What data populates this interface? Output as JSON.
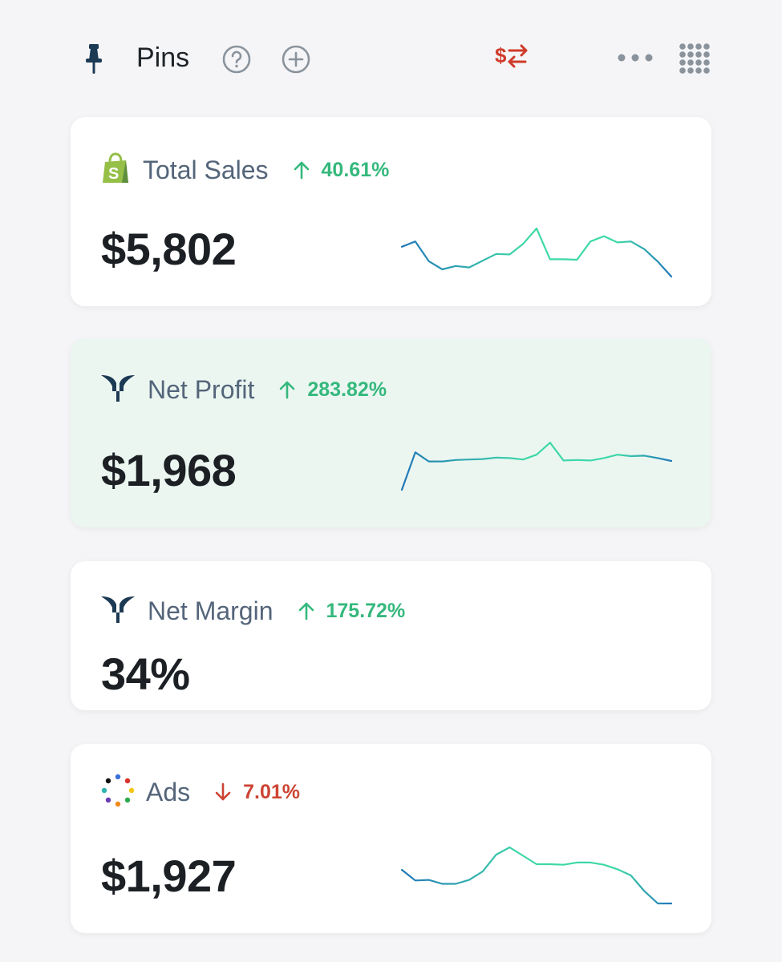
{
  "header": {
    "title": "Pins",
    "icons": [
      "pin-icon",
      "help-icon",
      "add-icon",
      "currency-swap-icon",
      "more-icon",
      "grid-icon"
    ],
    "colors": {
      "currency_swap": "#d03a2a",
      "icon_gray": "#8a939c",
      "pin": "#1d3a54"
    }
  },
  "cards": [
    {
      "name": "Total Sales",
      "icon": "shopify-icon",
      "change": "40.61%",
      "direction": "up",
      "value": "$5,802",
      "highlighted": false,
      "sparkline": [
        0.62,
        0.73,
        0.32,
        0.15,
        0.22,
        0.19,
        0.33,
        0.47,
        0.46,
        0.68,
        1.0,
        0.36,
        0.36,
        0.35,
        0.73,
        0.84,
        0.71,
        0.73,
        0.57,
        0.31,
        0.0
      ]
    },
    {
      "name": "Net Profit",
      "icon": "brand-t-icon",
      "change": "283.82%",
      "direction": "up",
      "value": "$1,968",
      "highlighted": true,
      "sparkline": [
        0.0,
        0.78,
        0.59,
        0.59,
        0.62,
        0.63,
        0.64,
        0.67,
        0.66,
        0.63,
        0.73,
        0.98,
        0.61,
        0.62,
        0.61,
        0.66,
        0.73,
        0.7,
        0.71,
        0.66,
        0.6
      ]
    },
    {
      "name": "Net Margin",
      "icon": "brand-t-icon",
      "change": "175.72%",
      "direction": "up",
      "value": "34%",
      "highlighted": false
    },
    {
      "name": "Ads",
      "icon": "ads-dots-icon",
      "change": "7.01%",
      "direction": "down",
      "value": "$1,927",
      "highlighted": false,
      "sparkline": [
        0.6,
        0.41,
        0.42,
        0.35,
        0.35,
        0.42,
        0.57,
        0.87,
        1.0,
        0.85,
        0.7,
        0.7,
        0.69,
        0.73,
        0.73,
        0.69,
        0.61,
        0.5,
        0.22,
        0.0,
        0.0
      ]
    }
  ],
  "colors": {
    "up": "#35b87d",
    "down": "#cc4433",
    "spark_start": "#2277b8",
    "spark_mid": "#3ed8a8",
    "spark_end": "#2277b8"
  }
}
